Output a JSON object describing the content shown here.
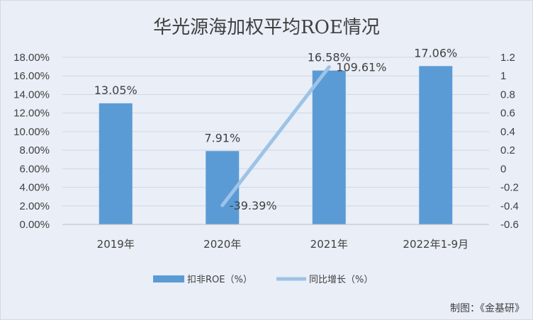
{
  "chart_data": {
    "type": "bar",
    "title": "华光源海加权平均ROE情况",
    "categories": [
      "2019年",
      "2020年",
      "2021年",
      "2022年1-9月"
    ],
    "series": [
      {
        "name": "扣非ROE（%）",
        "kind": "bar",
        "axis": "left",
        "color": "#5b9bd5",
        "values": [
          13.05,
          7.91,
          16.58,
          17.06
        ],
        "labels": [
          "13.05%",
          "7.91%",
          "16.58%",
          "17.06%"
        ]
      },
      {
        "name": "同比增长（%）",
        "kind": "line",
        "axis": "right",
        "color": "#9dc3e6",
        "values": [
          null,
          -0.3939,
          1.0961,
          null
        ],
        "labels": [
          "",
          "-39.39%",
          "109.61%",
          ""
        ]
      }
    ],
    "y_left": {
      "lim": [
        0,
        18
      ],
      "ticks": [
        0,
        2,
        4,
        6,
        8,
        10,
        12,
        14,
        16,
        18
      ],
      "tick_labels": [
        "0.00%",
        "2.00%",
        "4.00%",
        "6.00%",
        "8.00%",
        "10.00%",
        "12.00%",
        "14.00%",
        "16.00%",
        "18.00%"
      ]
    },
    "y_right": {
      "lim": [
        -0.6,
        1.2
      ],
      "ticks": [
        -0.6,
        -0.4,
        -0.2,
        0,
        0.2,
        0.4,
        0.6,
        0.8,
        1,
        1.2
      ],
      "tick_labels": [
        "-0.6",
        "-0.4",
        "-0.2",
        "0",
        "0.2",
        "0.4",
        "0.6",
        "0.8",
        "1",
        "1.2"
      ]
    },
    "grid": true,
    "legend_position": "bottom",
    "source_note": "制图：《金基研》"
  }
}
